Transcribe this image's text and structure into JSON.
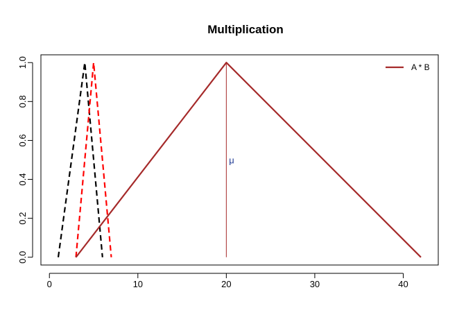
{
  "chart_data": {
    "type": "line",
    "title": "Multiplication",
    "xlim": [
      -0.96,
      43.96
    ],
    "ylim": [
      -0.04,
      1.04
    ],
    "x_ticks": [
      0,
      10,
      20,
      30,
      40
    ],
    "y_ticks": [
      0.0,
      0.2,
      0.4,
      0.6,
      0.8,
      1.0
    ],
    "x_tick_labels": [
      "0",
      "10",
      "20",
      "30",
      "40"
    ],
    "y_tick_labels": [
      "0.0",
      "0.2",
      "0.4",
      "0.6",
      "0.8",
      "1.0"
    ],
    "series": [
      {
        "color": "#000000",
        "style": "dashed",
        "x": [
          1,
          4,
          6
        ],
        "y": [
          0,
          1,
          0
        ]
      },
      {
        "color": "#ff0000",
        "style": "dashed",
        "x": [
          3,
          5,
          7
        ],
        "y": [
          0,
          1,
          0
        ]
      },
      {
        "name": "A * B",
        "color": "#a52a2a",
        "style": "solid",
        "x": [
          3,
          20,
          42
        ],
        "y": [
          0,
          1,
          0
        ]
      }
    ],
    "annotations": [
      {
        "type": "vline",
        "x": 20,
        "y": [
          0,
          1
        ],
        "color": "#a52a2a"
      },
      {
        "type": "text",
        "text": "μ",
        "x": 20.3,
        "y": 0.5,
        "color": "#1f3a93"
      }
    ],
    "legend": {
      "position": "top-right",
      "entries": [
        "A * B"
      ],
      "color": "#a52a2a"
    },
    "grid": false
  }
}
